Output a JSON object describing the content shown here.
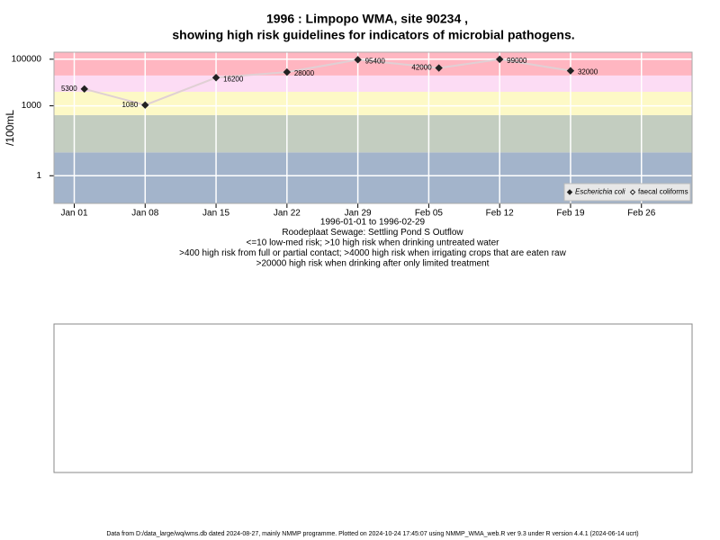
{
  "chart_data": {
    "type": "line",
    "title": "1996 : Limpopo WMA, site 90234 ,",
    "subtitle": "showing high risk guidelines for indicators of microbial pathogens.",
    "y_label": "/100mL",
    "x_label_lines": [
      "1996-01-01 to 1996-02-29",
      "Roodeplaat Sewage: Settling Pond S Outflow",
      "<=10 low-med risk; >10 high risk when drinking untreated water",
      ">400 high risk from full or partial contact; >4000 high risk when irrigating crops that are eaten raw",
      ">20000 high risk when drinking after only limited treatment"
    ],
    "x": [
      "1996-01-02",
      "1996-01-08",
      "1996-01-15",
      "1996-01-22",
      "1996-01-29",
      "1996-02-06",
      "1996-02-12",
      "1996-02-19"
    ],
    "series": [
      {
        "name": "Escherichia coli",
        "color": "#222222",
        "line_color": "#e0d0d4",
        "marker": "filled",
        "values": [
          5300,
          1080,
          16200,
          28000,
          95400,
          42000,
          99000,
          32000
        ]
      },
      {
        "name": "faecal coliforms",
        "color": "#222222",
        "marker": "open",
        "values": [
          null,
          null,
          null,
          null,
          null,
          null,
          null,
          null
        ]
      }
    ],
    "y_log": true,
    "ylim": [
      0.065,
      200000
    ],
    "yticks": [
      1,
      1000,
      100000
    ],
    "xlim": [
      "1995-12-30",
      "1996-03-02"
    ],
    "xticks": [
      {
        "value": "1996-01-01",
        "label": "Jan 01"
      },
      {
        "value": "1996-01-08",
        "label": "Jan 08"
      },
      {
        "value": "1996-01-15",
        "label": "Jan 15"
      },
      {
        "value": "1996-01-22",
        "label": "Jan 22"
      },
      {
        "value": "1996-01-29",
        "label": "Jan 29"
      },
      {
        "value": "1996-02-05",
        "label": "Feb 05"
      },
      {
        "value": "1996-02-12",
        "label": "Feb 12"
      },
      {
        "value": "1996-02-19",
        "label": "Feb 19"
      },
      {
        "value": "1996-02-26",
        "label": "Feb 26"
      }
    ],
    "bands": [
      {
        "from": 0.065,
        "to": 10,
        "color": "#a3b4cb"
      },
      {
        "from": 10,
        "to": 400,
        "color": "#c3cdc0"
      },
      {
        "from": 400,
        "to": 4000,
        "color": "#fdf9c6"
      },
      {
        "from": 4000,
        "to": 20000,
        "color": "#fcdcf4"
      },
      {
        "from": 20000,
        "to": 200000,
        "color": "#ffb6c1"
      }
    ],
    "grid": true,
    "legend_position": "bottom-right",
    "footer": "Data from D:/data_large/wq/wms.db dated 2024-08-27, mainly NMMP programme. Plotted on 2024-10-24 17:45:07 using NMMP_WMA_web.R ver 9.3 under R version 4.4.1 (2024-06-14 ucrt)"
  }
}
